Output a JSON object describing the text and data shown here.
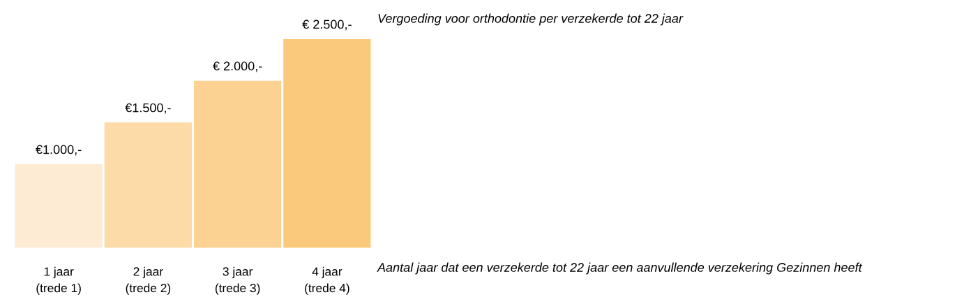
{
  "chart_data": {
    "type": "bar",
    "title": "Vergoeding voor orthodontie per verzekerde tot 22 jaar",
    "xlabel": "Aantal jaar dat een verzekerde tot 22 jaar een aanvullende verzekering Gezinnen heeft",
    "categories": [
      "1 jaar\n(trede 1)",
      "2 jaar\n(trede 2)",
      "3 jaar\n(trede 3)",
      "4 jaar\n(trede 4)"
    ],
    "values": [
      1000,
      1500,
      2000,
      2500
    ],
    "value_labels": [
      "€1.000,-",
      "€1.500,-",
      "€ 2.000,-",
      "€ 2.500,-"
    ],
    "colors": [
      "#fdebd3",
      "#fcdba8",
      "#fcd293",
      "#fbc97c"
    ],
    "ylim": [
      0,
      2500
    ],
    "grid": false,
    "legend": false
  }
}
